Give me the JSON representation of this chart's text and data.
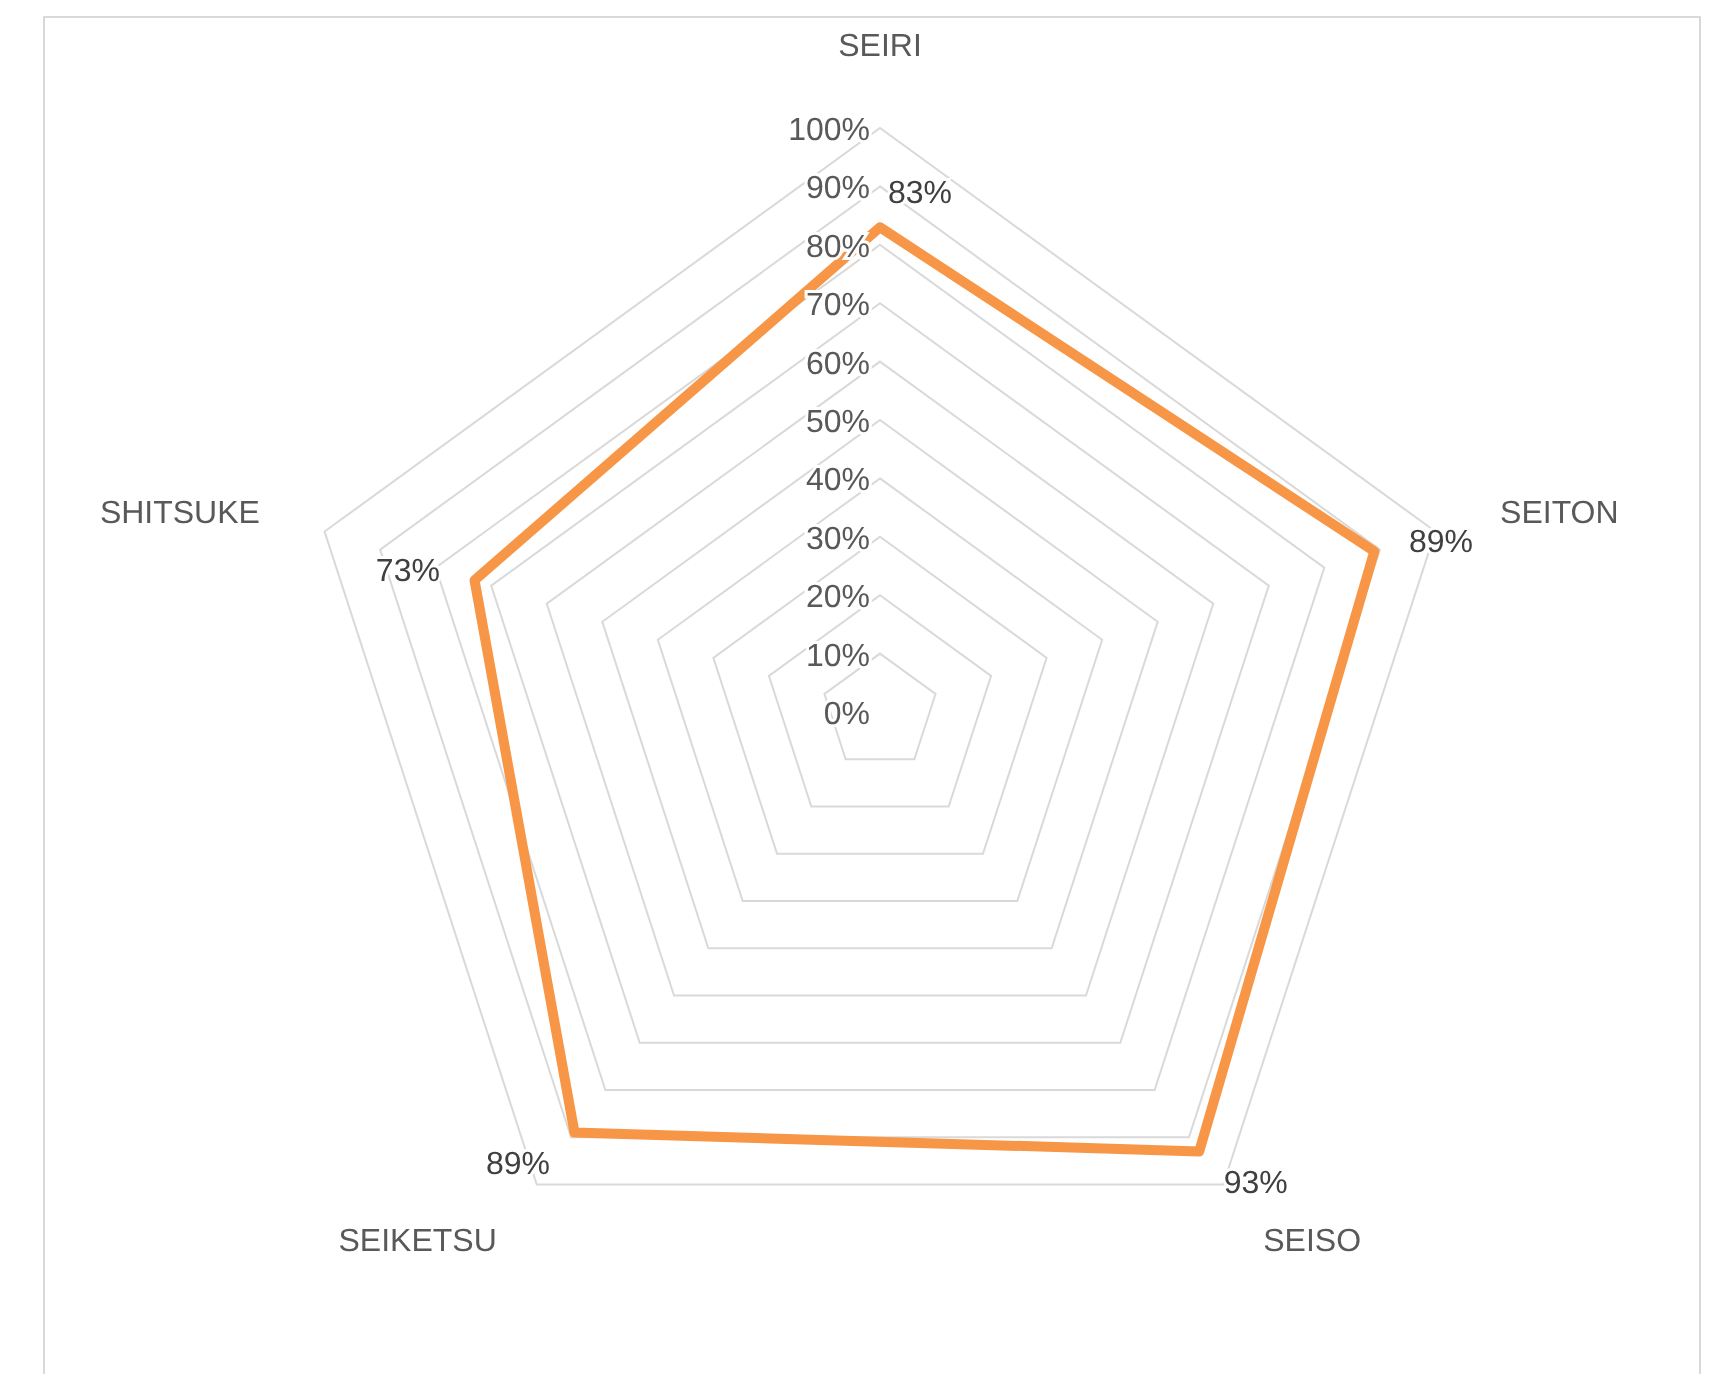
{
  "chart_data": {
    "type": "radar",
    "categories": [
      "SEIRI",
      "SEITON",
      "SEISO",
      "SEIKETSU",
      "SHITSUKE"
    ],
    "series": [
      {
        "color": "#f79646",
        "values": [
          83,
          89,
          93,
          89,
          73
        ],
        "value_labels": [
          "83%",
          "89%",
          "93%",
          "89%",
          "73%"
        ]
      }
    ],
    "ylim": [
      0,
      100
    ],
    "yticks": [
      {
        "value": 0,
        "label": "0%"
      },
      {
        "value": 10,
        "label": "10%"
      },
      {
        "value": 20,
        "label": "20%"
      },
      {
        "value": 30,
        "label": "30%"
      },
      {
        "value": 40,
        "label": "40%"
      },
      {
        "value": 50,
        "label": "50%"
      },
      {
        "value": 60,
        "label": "60%"
      },
      {
        "value": 70,
        "label": "70%"
      },
      {
        "value": 80,
        "label": "80%"
      },
      {
        "value": 90,
        "label": "90%"
      },
      {
        "value": 100,
        "label": "100%"
      }
    ],
    "grid": true
  }
}
